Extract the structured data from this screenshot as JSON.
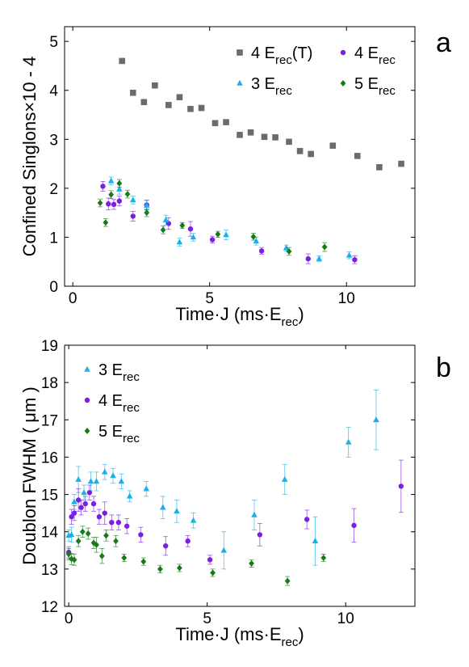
{
  "chart_data": [
    {
      "type": "scatter",
      "panel_label": "a",
      "xlabel": "Time·J (ms·E",
      "xlabel_sub": "rec",
      "xlabel_tail": ")",
      "ylabel": "Confined Singlons×10 - 4",
      "xlim": [
        -0.3,
        12.5
      ],
      "ylim": [
        0,
        5.3
      ],
      "xticks": [
        "0",
        "5",
        "10"
      ],
      "xtick_values": [
        0,
        5,
        10
      ],
      "yticks": [
        "0",
        "1",
        "2",
        "3",
        "4",
        "5"
      ],
      "ytick_values": [
        0,
        1,
        2,
        3,
        4,
        5
      ],
      "legend_placement": "top-right",
      "series": [
        {
          "name": "4 E",
          "name_sub": "rec",
          "name_tail": "(T)",
          "marker": "square",
          "color": "#6b6b6b",
          "points": [
            [
              1.8,
              4.6
            ],
            [
              2.2,
              3.95
            ],
            [
              2.6,
              3.76
            ],
            [
              3.0,
              4.1
            ],
            [
              3.5,
              3.7
            ],
            [
              3.9,
              3.86
            ],
            [
              4.3,
              3.62
            ],
            [
              4.7,
              3.64
            ],
            [
              5.2,
              3.33
            ],
            [
              5.6,
              3.35
            ],
            [
              6.1,
              3.09
            ],
            [
              6.5,
              3.14
            ],
            [
              7.0,
              3.05
            ],
            [
              7.4,
              3.04
            ],
            [
              7.9,
              2.95
            ],
            [
              8.3,
              2.76
            ],
            [
              8.7,
              2.7
            ],
            [
              9.5,
              2.87
            ],
            [
              10.4,
              2.66
            ],
            [
              11.2,
              2.43
            ],
            [
              12.0,
              2.5
            ]
          ]
        },
        {
          "name": "4 E",
          "name_sub": "rec",
          "name_tail": "",
          "marker": "circle",
          "color": "#7b1fe0",
          "points": [
            [
              1.1,
              2.04,
              0.1
            ],
            [
              1.3,
              1.68,
              0.12
            ],
            [
              1.5,
              1.67,
              0.1
            ],
            [
              1.7,
              1.74,
              0.1
            ],
            [
              2.2,
              1.43,
              0.1
            ],
            [
              2.7,
              1.66,
              0.1
            ],
            [
              3.5,
              1.28,
              0.12
            ],
            [
              4.3,
              1.17,
              0.15
            ],
            [
              5.1,
              0.95,
              0.07
            ],
            [
              6.9,
              0.72,
              0.07
            ],
            [
              8.6,
              0.56,
              0.1
            ],
            [
              10.3,
              0.54,
              0.08
            ]
          ]
        },
        {
          "name": "3 E",
          "name_sub": "rec",
          "name_tail": "",
          "marker": "triangle",
          "color": "#1ab0e8",
          "points": [
            [
              1.4,
              2.15,
              0.08
            ],
            [
              1.7,
              1.98,
              0.1
            ],
            [
              2.2,
              1.76,
              0.08
            ],
            [
              2.7,
              1.65,
              0.1
            ],
            [
              3.4,
              1.35,
              0.1
            ],
            [
              3.9,
              0.9,
              0.08
            ],
            [
              4.4,
              1.0,
              0.08
            ],
            [
              5.6,
              1.05,
              0.1
            ],
            [
              6.7,
              0.92,
              0.08
            ],
            [
              7.8,
              0.78,
              0.06
            ],
            [
              9.0,
              0.56,
              0.06
            ],
            [
              10.1,
              0.63,
              0.07
            ]
          ]
        },
        {
          "name": "5 E",
          "name_sub": "rec",
          "name_tail": "",
          "marker": "diamond",
          "color": "#1a7a1a",
          "points": [
            [
              1.0,
              1.7,
              0.08
            ],
            [
              1.2,
              1.3,
              0.08
            ],
            [
              1.4,
              1.87,
              0.08
            ],
            [
              1.7,
              2.1,
              0.08
            ],
            [
              2.0,
              1.88,
              0.08
            ],
            [
              2.7,
              1.5,
              0.08
            ],
            [
              3.3,
              1.15,
              0.08
            ],
            [
              4.0,
              1.24,
              0.06
            ],
            [
              5.3,
              1.06,
              0.06
            ],
            [
              6.6,
              1.01,
              0.07
            ],
            [
              7.9,
              0.71,
              0.08
            ],
            [
              9.2,
              0.8,
              0.09
            ]
          ]
        }
      ]
    },
    {
      "type": "scatter",
      "panel_label": "b",
      "xlabel": "Time·J (ms·E",
      "xlabel_sub": "rec",
      "xlabel_tail": ")",
      "ylabel": "Doublon FWHM ( μm )",
      "xlim": [
        -0.15,
        12.5
      ],
      "ylim": [
        12,
        19
      ],
      "xticks": [
        "0",
        "5",
        "10"
      ],
      "xtick_values": [
        0,
        5,
        10
      ],
      "yticks": [
        "12",
        "13",
        "14",
        "15",
        "16",
        "17",
        "18",
        "19"
      ],
      "ytick_values": [
        12,
        13,
        14,
        15,
        16,
        17,
        18,
        19
      ],
      "legend_placement": "top-left",
      "series": [
        {
          "name": "3 E",
          "name_sub": "rec",
          "name_tail": "",
          "marker": "triangle",
          "color": "#1ab0e8",
          "points": [
            [
              0.0,
              13.9,
              0.15
            ],
            [
              0.1,
              13.92,
              0.2
            ],
            [
              0.2,
              14.8,
              0.2
            ],
            [
              0.35,
              15.4,
              0.35
            ],
            [
              0.55,
              15.05,
              0.2
            ],
            [
              0.8,
              15.35,
              0.25
            ],
            [
              1.0,
              15.35,
              0.25
            ],
            [
              1.3,
              15.6,
              0.2
            ],
            [
              1.6,
              15.5,
              0.2
            ],
            [
              1.9,
              15.35,
              0.2
            ],
            [
              2.2,
              14.95,
              0.15
            ],
            [
              2.8,
              15.15,
              0.2
            ],
            [
              3.4,
              14.65,
              0.3
            ],
            [
              3.9,
              14.55,
              0.3
            ],
            [
              4.5,
              14.3,
              0.2
            ],
            [
              5.6,
              13.5,
              0.5
            ],
            [
              6.7,
              14.45,
              0.4
            ],
            [
              7.8,
              15.4,
              0.4
            ],
            [
              8.9,
              13.75,
              0.65
            ],
            [
              10.1,
              16.4,
              0.4
            ],
            [
              11.1,
              17.0,
              0.8
            ]
          ]
        },
        {
          "name": "4 E",
          "name_sub": "rec",
          "name_tail": "",
          "marker": "circle",
          "color": "#7b1fe0",
          "points": [
            [
              0.0,
              13.45,
              0.15
            ],
            [
              0.1,
              14.4,
              0.2
            ],
            [
              0.2,
              14.5,
              0.2
            ],
            [
              0.35,
              14.85,
              0.3
            ],
            [
              0.45,
              14.65,
              0.2
            ],
            [
              0.6,
              14.75,
              0.2
            ],
            [
              0.75,
              15.05,
              0.2
            ],
            [
              0.9,
              14.75,
              0.2
            ],
            [
              1.1,
              14.4,
              0.2
            ],
            [
              1.3,
              14.5,
              0.3
            ],
            [
              1.55,
              14.25,
              0.2
            ],
            [
              1.8,
              14.25,
              0.2
            ],
            [
              2.1,
              14.15,
              0.2
            ],
            [
              2.6,
              13.92,
              0.2
            ],
            [
              3.5,
              13.62,
              0.25
            ],
            [
              4.3,
              13.75,
              0.15
            ],
            [
              5.1,
              13.25,
              0.12
            ],
            [
              6.9,
              13.92,
              0.3
            ],
            [
              8.6,
              14.33,
              0.25
            ],
            [
              10.3,
              14.17,
              0.45
            ],
            [
              12.0,
              15.22,
              0.7
            ]
          ]
        },
        {
          "name": "5 E",
          "name_sub": "rec",
          "name_tail": "",
          "marker": "diamond",
          "color": "#1a7a1a",
          "points": [
            [
              0.0,
              13.4,
              0.15
            ],
            [
              0.1,
              13.27,
              0.15
            ],
            [
              0.2,
              13.25,
              0.15
            ],
            [
              0.35,
              13.75,
              0.15
            ],
            [
              0.5,
              14.0,
              0.15
            ],
            [
              0.7,
              13.95,
              0.15
            ],
            [
              0.9,
              13.7,
              0.15
            ],
            [
              1.0,
              13.65,
              0.2
            ],
            [
              1.2,
              13.35,
              0.2
            ],
            [
              1.35,
              13.9,
              0.15
            ],
            [
              1.7,
              13.75,
              0.15
            ],
            [
              2.0,
              13.3,
              0.1
            ],
            [
              2.7,
              13.2,
              0.1
            ],
            [
              3.3,
              13.0,
              0.1
            ],
            [
              4.0,
              13.03,
              0.1
            ],
            [
              5.2,
              12.9,
              0.1
            ],
            [
              6.6,
              13.15,
              0.1
            ],
            [
              7.9,
              12.68,
              0.12
            ],
            [
              9.2,
              13.3,
              0.1
            ]
          ]
        }
      ]
    }
  ]
}
